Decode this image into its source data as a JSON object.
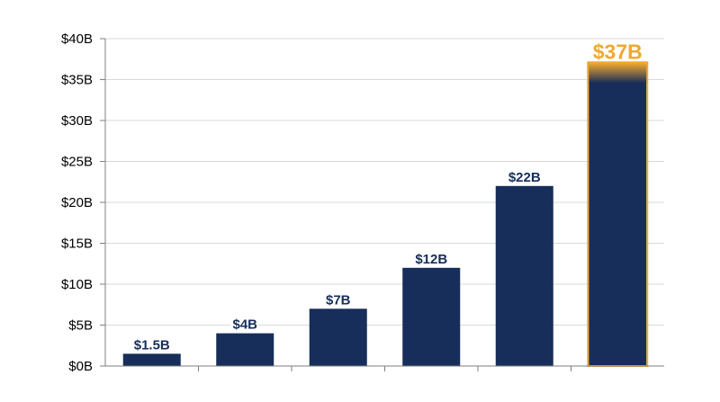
{
  "chart_data": {
    "type": "bar",
    "title": "",
    "xlabel": "",
    "ylabel": "",
    "categories": [
      "",
      "",
      "",
      "",
      "",
      ""
    ],
    "values": [
      1.5,
      4,
      7,
      12,
      22,
      37
    ],
    "value_labels": [
      "$1.5B",
      "$4B",
      "$7B",
      "$12B",
      "$22B",
      "$37B"
    ],
    "ylim": [
      0,
      40
    ],
    "y_ticks": [
      {
        "value": 0,
        "label": "$0B"
      },
      {
        "value": 5,
        "label": "$5B"
      },
      {
        "value": 10,
        "label": "$10B"
      },
      {
        "value": 15,
        "label": "$15B"
      },
      {
        "value": 20,
        "label": "$20B"
      },
      {
        "value": 25,
        "label": "$25B"
      },
      {
        "value": 30,
        "label": "$30B"
      },
      {
        "value": 35,
        "label": "$35B"
      },
      {
        "value": 40,
        "label": "$40B"
      }
    ],
    "grid": true,
    "highlight_index": 5,
    "colors": {
      "bar": "#172e5a",
      "highlight_label": "#f0a830",
      "highlight_outline": "#f0a830",
      "value_label": "#172e5a",
      "grid": "#d9d9d9",
      "axis": "#7f7f7f"
    }
  }
}
